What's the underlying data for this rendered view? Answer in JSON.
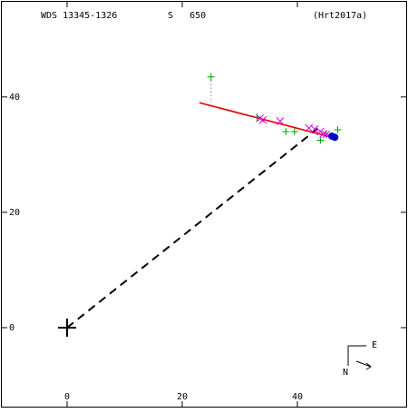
{
  "chart_data": {
    "type": "scatter",
    "header": {
      "wds": "WDS 13345-1326",
      "name": "S   650",
      "reference": "(Hrt2017a)"
    },
    "compass": {
      "east": "E",
      "north": "N"
    },
    "xlim": [
      -11.34,
      58.9
    ],
    "ylim": [
      -13.7,
      56.5
    ],
    "xticks": [
      0,
      20,
      40
    ],
    "yticks": [
      0,
      20,
      40
    ],
    "series": [
      {
        "color": "#008000",
        "marker": "dotted",
        "x": [
          25,
          25
        ],
        "values": [
          43.5,
          39
        ]
      },
      {
        "color": "#000000",
        "marker": "dashed",
        "x": [
          0,
          43.5
        ],
        "values": [
          0,
          34.5
        ]
      },
      {
        "color": "#000000",
        "marker": "line",
        "x": [
          23,
          46
        ],
        "values": [
          39,
          33
        ]
      },
      {
        "color": "#ff0000",
        "marker": "line",
        "x": [
          23,
          46
        ],
        "values": [
          39,
          33
        ]
      },
      {
        "color": "#00a000",
        "marker": "plus",
        "x": [
          25,
          33,
          38,
          39.5,
          44,
          47,
          45
        ],
        "values": [
          43.5,
          36.5,
          34,
          34,
          32.5,
          34.3,
          33.5
        ]
      },
      {
        "color": "#e000e0",
        "marker": "cross",
        "x": [
          33.5,
          34,
          37,
          42,
          43,
          44,
          44.5,
          45
        ],
        "values": [
          36.3,
          36,
          35.8,
          34.6,
          34.4,
          34,
          33.6,
          33.5
        ]
      },
      {
        "color": "#0000cc",
        "marker": "dot",
        "x": [
          46,
          46.5
        ],
        "values": [
          33.2,
          33
        ]
      },
      {
        "color": "#000000",
        "marker": "primary",
        "x": [
          0
        ],
        "values": [
          0
        ]
      }
    ]
  }
}
